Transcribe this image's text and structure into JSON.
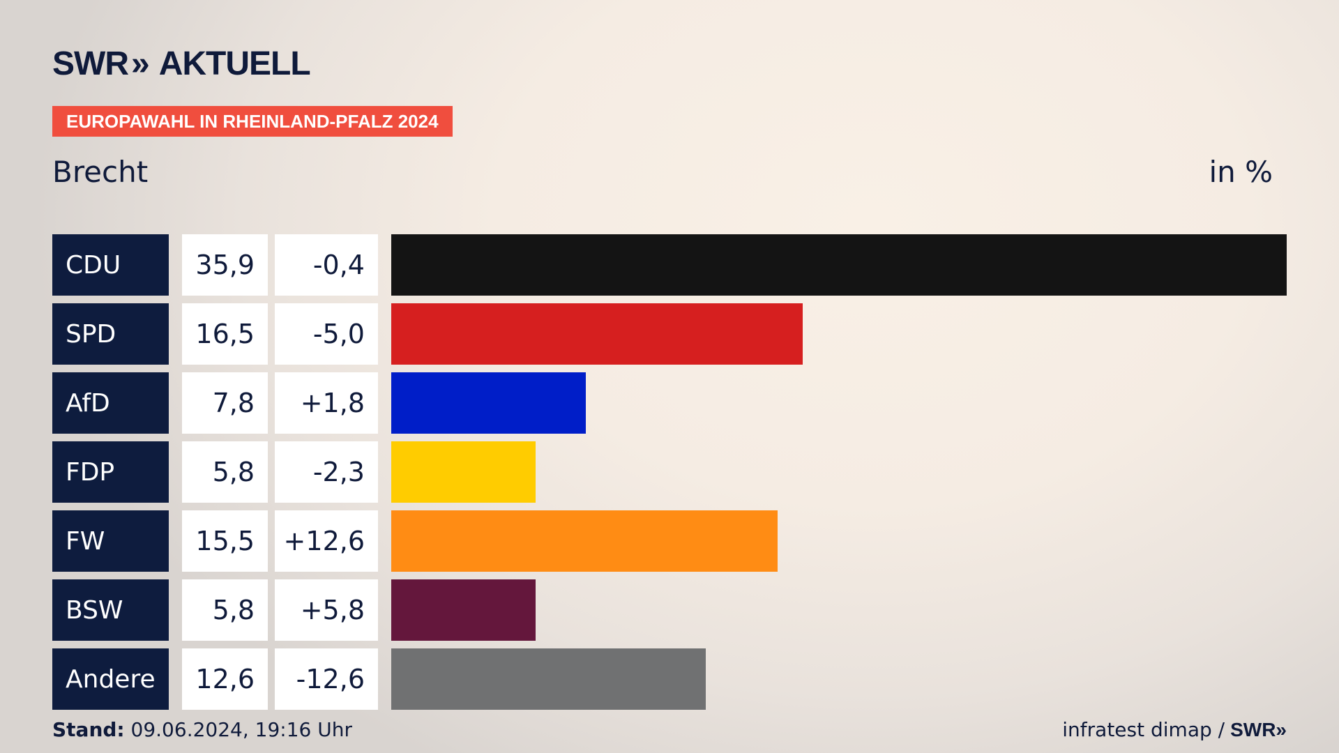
{
  "brand": {
    "name": "SWR",
    "chevrons": "»",
    "product": "AKTUELL"
  },
  "badge": "EUROPAWAHL IN RHEINLAND-PFALZ 2024",
  "region": "Brecht",
  "unit": "in %",
  "chart_data": {
    "type": "bar",
    "orientation": "horizontal",
    "xlim": [
      0,
      35.9
    ],
    "categories": [
      "CDU",
      "SPD",
      "AfD",
      "FDP",
      "FW",
      "BSW",
      "Andere"
    ],
    "values": [
      35.9,
      16.5,
      7.8,
      5.8,
      15.5,
      5.8,
      12.6
    ],
    "value_labels": [
      "35,9",
      "16,5",
      "7,8",
      "5,8",
      "15,5",
      "5,8",
      "12,6"
    ],
    "change_labels": [
      "-0,4",
      "-5,0",
      "+1,8",
      "-2,3",
      "+12,6",
      "+5,8",
      "-12,6"
    ],
    "colors": [
      "#141414",
      "#d61f1f",
      "#001ec8",
      "#ffcc00",
      "#ff8c14",
      "#64173c",
      "#707172"
    ]
  },
  "footer": {
    "stand_label": "Stand:",
    "stand_value": "09.06.2024, 19:16 Uhr",
    "source": "infratest dimap /",
    "source_brand": "SWR»"
  }
}
